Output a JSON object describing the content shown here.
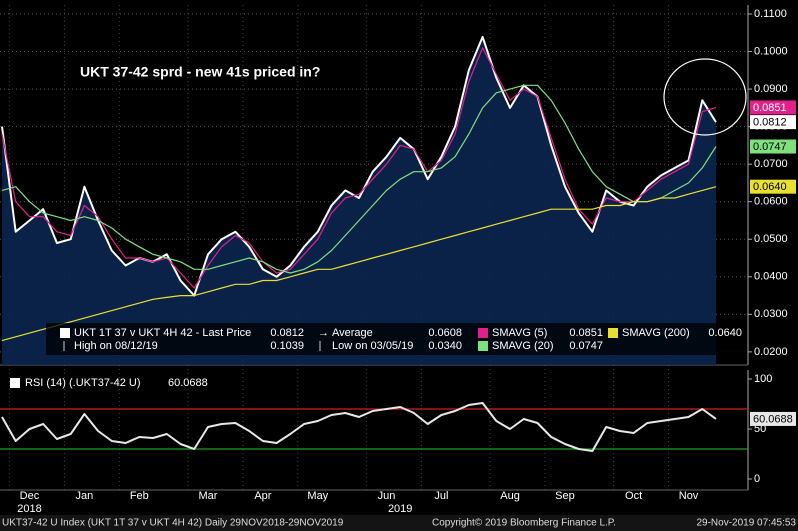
{
  "chart_data": [
    {
      "type": "line",
      "title": "UKT 37-42 sprd - new 41s priced in?",
      "categories": [
        null,
        null,
        "Dec",
        null,
        null,
        null,
        "Jan",
        null,
        null,
        null,
        "Feb",
        null,
        null,
        null,
        null,
        "Mar",
        null,
        null,
        null,
        "Apr",
        null,
        null,
        null,
        "May",
        null,
        null,
        null,
        null,
        "Jun",
        null,
        null,
        null,
        "Jul",
        null,
        null,
        null,
        null,
        "Aug",
        null,
        null,
        null,
        "Sep",
        null,
        null,
        null,
        null,
        "Oct",
        null,
        null,
        null,
        "Nov",
        null,
        null
      ],
      "year_labels": [
        "2018",
        "2019"
      ],
      "ylim": [
        0.0165,
        0.1124
      ],
      "yticks": [
        {
          "value": 0.02,
          "label": "0.0200"
        },
        {
          "value": 0.03,
          "label": "0.0300"
        },
        {
          "value": 0.04,
          "label": "0.0400"
        },
        {
          "value": 0.05,
          "label": "0.0500"
        },
        {
          "value": 0.06,
          "label": "0.0600"
        },
        {
          "value": 0.07,
          "label": "0.0700"
        },
        {
          "value": 0.08,
          "label": "0.0800"
        },
        {
          "value": 0.09,
          "label": "0.0900"
        },
        {
          "value": 0.1,
          "label": "0.1000"
        },
        {
          "value": 0.11,
          "label": "0.1100"
        }
      ],
      "grid": true,
      "series": [
        {
          "name": "UKT 1T 37 v UKT 4H 42 - Last Price",
          "color": "#ffffff",
          "fill": "#0c2650",
          "last": "0.0812",
          "values": [
            0.08,
            0.052,
            0.055,
            0.058,
            0.049,
            0.05,
            0.064,
            0.055,
            0.047,
            0.043,
            0.045,
            0.044,
            0.046,
            0.039,
            0.035,
            0.046,
            0.05,
            0.052,
            0.048,
            0.042,
            0.04,
            0.043,
            0.048,
            0.052,
            0.059,
            0.063,
            0.061,
            0.068,
            0.072,
            0.077,
            0.074,
            0.066,
            0.072,
            0.08,
            0.095,
            0.1039,
            0.093,
            0.085,
            0.091,
            0.088,
            0.075,
            0.064,
            0.057,
            0.052,
            0.063,
            0.06,
            0.059,
            0.064,
            0.067,
            0.069,
            0.071,
            0.087,
            0.0812
          ]
        },
        {
          "name": "SMAVG (5)",
          "color": "#e0218a",
          "last": "0.0851",
          "values": [
            0.078,
            0.06,
            0.056,
            0.056,
            0.052,
            0.051,
            0.059,
            0.056,
            0.05,
            0.045,
            0.045,
            0.044,
            0.045,
            0.041,
            0.037,
            0.043,
            0.048,
            0.051,
            0.049,
            0.044,
            0.041,
            0.042,
            0.046,
            0.05,
            0.057,
            0.061,
            0.062,
            0.066,
            0.07,
            0.075,
            0.074,
            0.068,
            0.071,
            0.078,
            0.092,
            0.101,
            0.094,
            0.087,
            0.09,
            0.088,
            0.077,
            0.066,
            0.058,
            0.054,
            0.061,
            0.06,
            0.06,
            0.063,
            0.066,
            0.068,
            0.07,
            0.084,
            0.0851
          ]
        },
        {
          "name": "SMAVG (20)",
          "color": "#7fe07f",
          "last": "0.0747",
          "values": [
            0.063,
            0.064,
            0.06,
            0.057,
            0.056,
            0.055,
            0.056,
            0.055,
            0.053,
            0.05,
            0.048,
            0.046,
            0.045,
            0.044,
            0.042,
            0.042,
            0.043,
            0.044,
            0.045,
            0.044,
            0.042,
            0.041,
            0.042,
            0.044,
            0.047,
            0.051,
            0.055,
            0.059,
            0.063,
            0.066,
            0.068,
            0.068,
            0.069,
            0.072,
            0.078,
            0.085,
            0.089,
            0.09,
            0.091,
            0.091,
            0.087,
            0.081,
            0.074,
            0.068,
            0.064,
            0.062,
            0.06,
            0.06,
            0.061,
            0.063,
            0.065,
            0.069,
            0.0747
          ]
        },
        {
          "name": "SMAVG (200)",
          "color": "#e8e030",
          "last": "0.0640",
          "values": [
            0.023,
            0.024,
            0.025,
            0.026,
            0.027,
            0.028,
            0.029,
            0.03,
            0.031,
            0.032,
            0.033,
            0.034,
            0.0345,
            0.035,
            0.035,
            0.036,
            0.037,
            0.038,
            0.038,
            0.039,
            0.039,
            0.04,
            0.041,
            0.042,
            0.042,
            0.043,
            0.044,
            0.045,
            0.046,
            0.047,
            0.048,
            0.049,
            0.05,
            0.051,
            0.052,
            0.053,
            0.054,
            0.055,
            0.056,
            0.057,
            0.058,
            0.058,
            0.058,
            0.058,
            0.059,
            0.059,
            0.06,
            0.06,
            0.061,
            0.061,
            0.062,
            0.063,
            0.064
          ]
        }
      ],
      "stats": [
        {
          "name": "High on 08/12/19",
          "value": "0.1039"
        },
        {
          "name": "Average",
          "value": "0.0608"
        },
        {
          "name": "Low on 03/05/19",
          "value": "0.0340"
        }
      ]
    },
    {
      "type": "line",
      "title": "RSI (14) (.UKT37-42 U)",
      "ylim": [
        -11,
        109
      ],
      "yticks": [
        0,
        50,
        100
      ],
      "levels": [
        {
          "value": 70,
          "color": "#d02020"
        },
        {
          "value": 30,
          "color": "#20a020"
        }
      ],
      "series": [
        {
          "name": "RSI (14)",
          "color": "#e8e8e8",
          "values": [
            62,
            38,
            50,
            55,
            40,
            45,
            65,
            48,
            38,
            36,
            42,
            41,
            45,
            35,
            30,
            52,
            55,
            56,
            48,
            38,
            36,
            45,
            55,
            58,
            64,
            66,
            62,
            68,
            70,
            72,
            66,
            55,
            64,
            68,
            74,
            76,
            58,
            50,
            60,
            56,
            42,
            35,
            30,
            28,
            52,
            48,
            46,
            56,
            58,
            60,
            62,
            70,
            60.0688
          ]
        }
      ]
    }
  ],
  "footer": {
    "index": "UKT37-42 U Index (UKT 1T 37 v UKT 4H 42)  Daily 29NOV2018-29NOV2019",
    "copyright": "Copyright© 2019 Bloomberg Finance L.P.",
    "timestamp": "29-Nov-2019 07:45:53"
  }
}
